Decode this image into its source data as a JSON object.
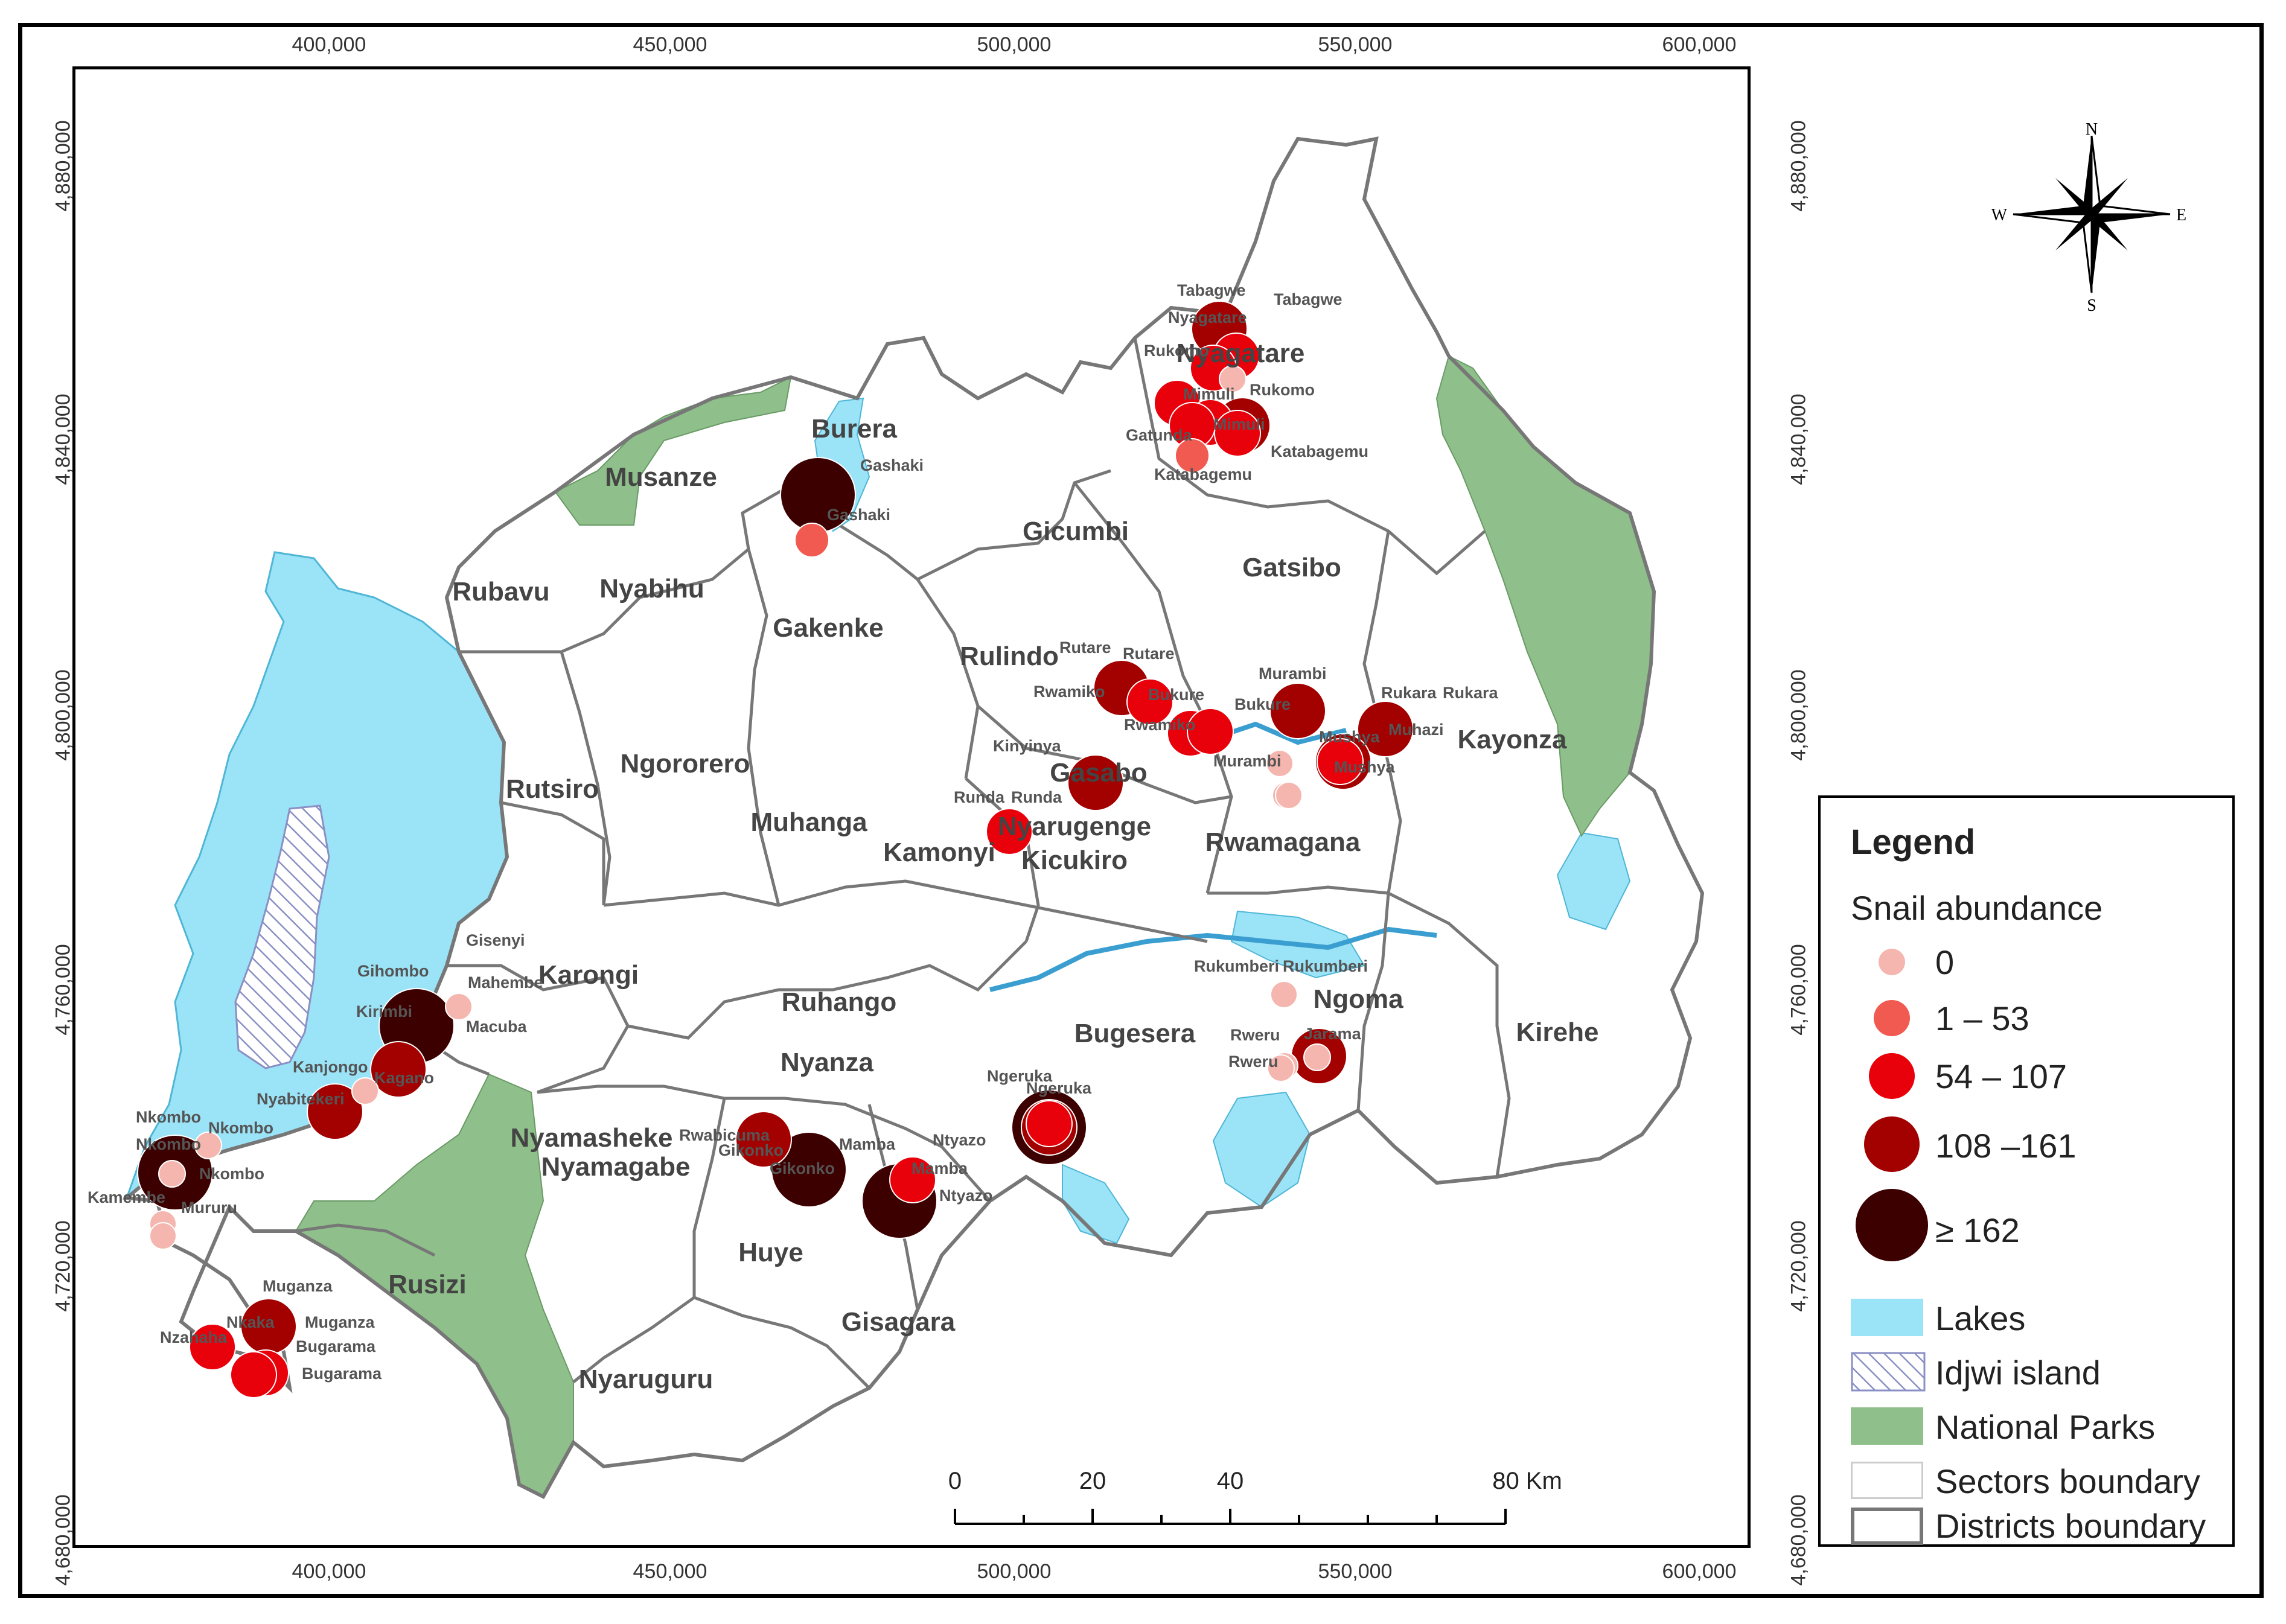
{
  "axes": {
    "x_ticks": [
      "400,000",
      "450,000",
      "500,000",
      "550,000",
      "600,000"
    ],
    "y_ticks": [
      "4,880,000",
      "4,840,000",
      "4,800,000",
      "4,760,000",
      "4,720,000",
      "4,680,000"
    ]
  },
  "compass": {
    "n": "N",
    "s": "S",
    "e": "E",
    "w": "W"
  },
  "districts": [
    "Musanze",
    "Burera",
    "Rubavu",
    "Nyabihu",
    "Gakenke",
    "Gicumbi",
    "Gatsibo",
    "Nyagatare",
    "Rulindo",
    "Rutsiro",
    "Ngororero",
    "Muhanga",
    "Kamonyi",
    "Gasabo",
    "Nyarugenge",
    "Kicukiro",
    "Rwamagana",
    "Kayonza",
    "Karongi",
    "Ruhango",
    "Ngoma",
    "Kirehe",
    "Bugesera",
    "Nyamasheke",
    "Nyanza",
    "Nyamagabe",
    "Huye",
    "Rusizi",
    "Gisagara",
    "Nyaruguru"
  ],
  "sectors": [
    "Tabagwe",
    "Tabagwe",
    "Nyagatare",
    "Rukomo",
    "Rukomo",
    "Mimuli",
    "Mimuli",
    "Gatunda",
    "Katabagemu",
    "Katabagemu",
    "Gashaki",
    "Gashaki",
    "Rutare",
    "Rutare",
    "Rwamiko",
    "Bukure",
    "Rwamiko",
    "Bukure",
    "Murambi",
    "Rukara",
    "Rukara",
    "Muhazi",
    "Mushya",
    "Mushya",
    "Murambi",
    "Kinyinya",
    "Runda",
    "Runda",
    "Gisenyi",
    "Gihombo",
    "Mahembe",
    "Kirimbi",
    "Macuba",
    "Kanjongo",
    "Kagano",
    "Nyabitekeri",
    "Nkombo",
    "Nkombo",
    "Nkombo",
    "Nkombo",
    "Kamembe",
    "Mururu",
    "Rukumberi",
    "Rukumberi",
    "Rweru",
    "Rweru",
    "Jarama",
    "Ngeruka",
    "Ngeruka",
    "Gikonko",
    "Rwabicuma",
    "Gikonko",
    "Mamba",
    "Mamba",
    "Ntyazo",
    "Ntyazo",
    "Muganza",
    "Muganza",
    "Nzahaha",
    "Nkaka",
    "Bugarama",
    "Bugarama"
  ],
  "legend": {
    "title": "Legend",
    "subtitle": "Snail abundance",
    "classes": [
      {
        "label": "0",
        "color": "#f4b6ae"
      },
      {
        "label": "1 – 53",
        "color": "#f15a50"
      },
      {
        "label": "54 – 107",
        "color": "#e8000b"
      },
      {
        "label": "108 –161",
        "color": "#a30000"
      },
      {
        "label": "≥ 162",
        "color": "#3d0000"
      }
    ],
    "layers": [
      {
        "label": "Lakes",
        "color": "#9be3f7"
      },
      {
        "label": "Idjwi island",
        "color": "#ffffff"
      },
      {
        "label": "National Parks",
        "color": "#8fbf8a"
      },
      {
        "label": "Sectors boundary",
        "color": "#cccccc"
      },
      {
        "label": "Districts boundary",
        "color": "#777777"
      }
    ]
  },
  "scale": {
    "ticks": [
      "0",
      "20",
      "40",
      "80 Km"
    ]
  },
  "colors": {
    "lake": "#9be3f7",
    "park": "#8fbf8a",
    "district_line": "#777777",
    "sector_line": "#cfcfcf"
  },
  "sites": [
    {
      "abundance": "108-161"
    },
    {
      "abundance": "54-107"
    },
    {
      "abundance": "54-107"
    },
    {
      "abundance": "54-107"
    },
    {
      "abundance": "0"
    },
    {
      "abundance": "54-107"
    },
    {
      "abundance": "108-161"
    },
    {
      "abundance": "54-107"
    },
    {
      "abundance": "1-53"
    },
    {
      "abundance": "54-107"
    },
    {
      "abundance": "≥162"
    },
    {
      "abundance": "1-53"
    },
    {
      "abundance": "108-161"
    },
    {
      "abundance": "54-107"
    },
    {
      "abundance": "54-107"
    },
    {
      "abundance": "54-107"
    },
    {
      "abundance": "108-161"
    },
    {
      "abundance": "54-107"
    },
    {
      "abundance": "108-161"
    },
    {
      "abundance": "108-161"
    },
    {
      "abundance": "0"
    },
    {
      "abundance": "108-161"
    },
    {
      "abundance": "54-107"
    },
    {
      "abundance": "0"
    },
    {
      "abundance": "0"
    },
    {
      "abundance": "≥162"
    },
    {
      "abundance": "108-161"
    },
    {
      "abundance": "108-161"
    },
    {
      "abundance": "0"
    },
    {
      "abundance": "0"
    },
    {
      "abundance": "≥162"
    },
    {
      "abundance": "0"
    },
    {
      "abundance": "0"
    },
    {
      "abundance": "0"
    },
    {
      "abundance": "0"
    },
    {
      "abundance": "≥162"
    },
    {
      "abundance": "108-161"
    },
    {
      "abundance": "≥162"
    },
    {
      "abundance": "≥162"
    },
    {
      "abundance": "54-107"
    },
    {
      "abundance": "108-161"
    },
    {
      "abundance": "54-107"
    },
    {
      "abundance": "108-161"
    },
    {
      "abundance": "0"
    },
    {
      "abundance": "0"
    },
    {
      "abundance": "0"
    },
    {
      "abundance": "0"
    },
    {
      "abundance": "108-161"
    },
    {
      "abundance": "54-107"
    },
    {
      "abundance": "54-107"
    },
    {
      "abundance": "54-107"
    }
  ]
}
